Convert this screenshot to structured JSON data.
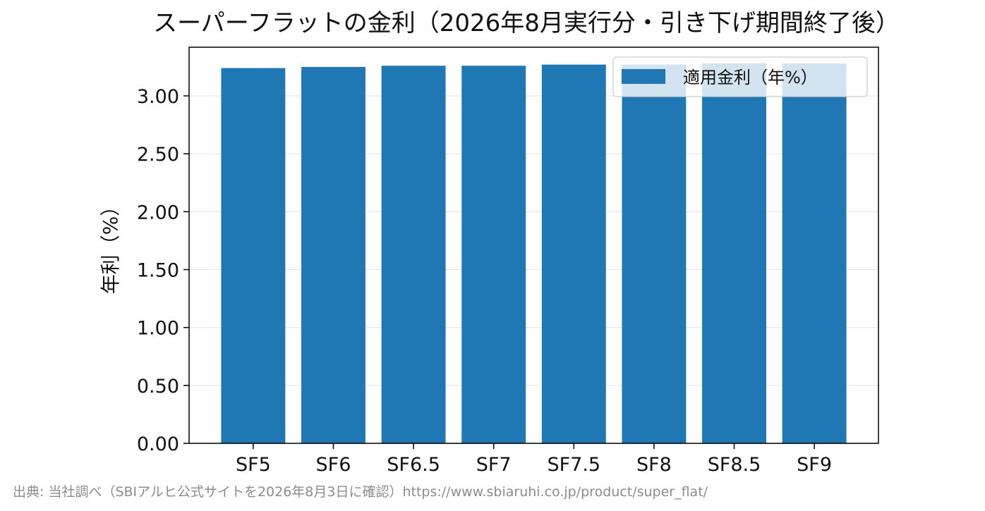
{
  "chart_data": {
    "type": "bar",
    "title": "スーパーフラットの金利（2026年8月実行分・引き下げ期間終了後）",
    "xlabel": "",
    "ylabel": "年利（%）",
    "categories": [
      "SF5",
      "SF6",
      "SF6.5",
      "SF7",
      "SF7.5",
      "SF8",
      "SF8.5",
      "SF9"
    ],
    "series": [
      {
        "name": "適用金利（年%）",
        "values": [
          3.24,
          3.25,
          3.26,
          3.26,
          3.27,
          3.27,
          3.28,
          3.28
        ],
        "color": "#1f77b4"
      }
    ],
    "ylim": [
      0,
      3.42
    ],
    "yticks": [
      "0.00",
      "0.50",
      "1.00",
      "1.50",
      "2.00",
      "2.50",
      "3.00"
    ],
    "ytick_values": [
      0,
      0.5,
      1.0,
      1.5,
      2.0,
      2.5,
      3.0
    ],
    "grid": "y",
    "legend_position": "top-right",
    "source_note": "出典: 当社調べ（SBIアルヒ公式サイトを2026年8月3日に確認）https://www.sbiaruhi.co.jp/product/super_flat/"
  }
}
